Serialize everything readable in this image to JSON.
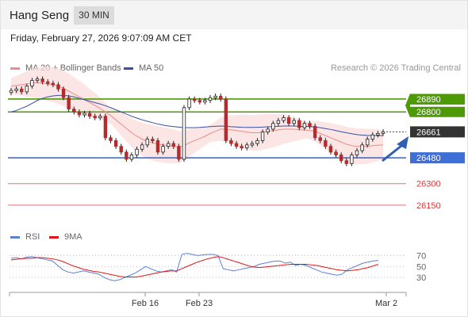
{
  "header": {
    "title": "Hang Seng",
    "timeframe": "30 MIN"
  },
  "datetime": "Friday, February 27, 2026 9:07:09 AM CET",
  "legend": {
    "ma20_label": "MA 20 + Bollinger Bands",
    "ma50_label": "MA 50",
    "credit": "Research © 2026 Trading Central",
    "rsi_label": "RSI",
    "rsi_ma_label": "9MA"
  },
  "colors": {
    "ma20": "#f08a8a",
    "ma50": "#3550a8",
    "band": "#fbdcdc",
    "candle": "#b52a2a",
    "resistance": "#4e9a06",
    "support": "#3d6fd6",
    "weak_level": "#e57373",
    "rsi": "#5b7fd6",
    "rsi_ma": "#e01414",
    "arrow": "#2f5fb3"
  },
  "chart_data": [
    {
      "type": "candlestick",
      "x_ticks": [
        "Feb 16",
        "Feb 23",
        "Mar 2"
      ],
      "ylim": [
        26000,
        27050
      ],
      "levels": [
        {
          "label": "26890",
          "value": 26890,
          "kind": "resistance"
        },
        {
          "label": "26800",
          "value": 26800,
          "kind": "resistance"
        },
        {
          "label": "26661",
          "value": 26661,
          "kind": "last"
        },
        {
          "label": "26480",
          "value": 26480,
          "kind": "support"
        },
        {
          "label": "26300",
          "value": 26300,
          "kind": "weak"
        },
        {
          "label": "26150",
          "value": 26150,
          "kind": "weak"
        }
      ],
      "close": [
        26950,
        26960,
        26940,
        26980,
        27020,
        27030,
        27010,
        27000,
        26990,
        26960,
        26900,
        26820,
        26800,
        26780,
        26790,
        26770,
        26760,
        26770,
        26620,
        26600,
        26560,
        26520,
        26470,
        26500,
        26540,
        26570,
        26610,
        26600,
        26520,
        26560,
        26580,
        26560,
        26470,
        26830,
        26890,
        26880,
        26870,
        26880,
        26900,
        26910,
        26890,
        26600,
        26580,
        26560,
        26550,
        26570,
        26580,
        26600,
        26660,
        26680,
        26720,
        26740,
        26760,
        26720,
        26740,
        26690,
        26720,
        26700,
        26620,
        26600,
        26560,
        26520,
        26500,
        26460,
        26440,
        26500,
        26530,
        26570,
        26610,
        26640,
        26650,
        26661
      ],
      "series": [
        {
          "name": "MA 20",
          "values": [
            26980,
            26985,
            26990,
            26995,
            27000,
            27005,
            27000,
            26995,
            26990,
            26980,
            26965,
            26945,
            26925,
            26905,
            26885,
            26865,
            26845,
            26825,
            26800,
            26775,
            26745,
            26715,
            26685,
            26655,
            26630,
            26610,
            26595,
            26585,
            26575,
            26570,
            26565,
            26560,
            26555,
            26565,
            26585,
            26600,
            26615,
            26630,
            26650,
            26665,
            26680,
            26680,
            26675,
            26670,
            26665,
            26660,
            26655,
            26655,
            26660,
            26665,
            26670,
            26675,
            26680,
            26680,
            26680,
            26675,
            26675,
            26670,
            26665,
            26650,
            26635,
            26620,
            26605,
            26590,
            26575,
            26565,
            26560,
            26560,
            26560,
            26565,
            26568,
            26570
          ]
        },
        {
          "name": "MA 50",
          "values": [
            26800,
            26810,
            26825,
            26840,
            26860,
            26880,
            26895,
            26905,
            26912,
            26915,
            26915,
            26912,
            26905,
            26895,
            26885,
            26875,
            26865,
            26855,
            26843,
            26830,
            26815,
            26800,
            26785,
            26770,
            26757,
            26745,
            26735,
            26725,
            26716,
            26708,
            26702,
            26698,
            26694,
            26690,
            26690,
            26690,
            26692,
            26695,
            26698,
            26700,
            26702,
            26700,
            26697,
            26695,
            26693,
            26692,
            26692,
            26693,
            26694,
            26696,
            26698,
            26700,
            26702,
            26702,
            26702,
            26700,
            26699,
            26698,
            26695,
            26690,
            26684,
            26678,
            26670,
            26662,
            26655,
            26648,
            26642,
            26638,
            26636,
            26635,
            26635,
            26635
          ]
        }
      ]
    },
    {
      "type": "line",
      "title": "RSI",
      "y_ticks": [
        70,
        50,
        30
      ],
      "ylim": [
        10,
        85
      ],
      "series": [
        {
          "name": "RSI",
          "values": [
            65,
            66,
            64,
            67,
            68,
            66,
            64,
            62,
            60,
            52,
            44,
            40,
            38,
            40,
            42,
            40,
            38,
            36,
            30,
            26,
            24,
            26,
            30,
            34,
            38,
            44,
            50,
            46,
            42,
            40,
            42,
            44,
            40,
            72,
            74,
            72,
            70,
            71,
            72,
            72,
            70,
            46,
            44,
            42,
            44,
            46,
            48,
            50,
            54,
            56,
            58,
            60,
            60,
            56,
            58,
            52,
            54,
            52,
            48,
            44,
            40,
            38,
            36,
            34,
            36,
            44,
            48,
            52,
            56,
            58,
            60,
            61
          ]
        },
        {
          "name": "9MA",
          "values": [
            62,
            63,
            64,
            65,
            65,
            66,
            66,
            65,
            64,
            62,
            59,
            55,
            51,
            48,
            45,
            43,
            41,
            40,
            38,
            36,
            34,
            32,
            31,
            31,
            31,
            32,
            34,
            36,
            38,
            40,
            41,
            42,
            42,
            46,
            50,
            54,
            58,
            61,
            64,
            66,
            68,
            66,
            63,
            60,
            57,
            54,
            51,
            49,
            48,
            49,
            50,
            51,
            52,
            53,
            54,
            54,
            54,
            54,
            53,
            52,
            50,
            48,
            46,
            44,
            43,
            42,
            43,
            44,
            46,
            48,
            51,
            54
          ]
        }
      ]
    }
  ]
}
